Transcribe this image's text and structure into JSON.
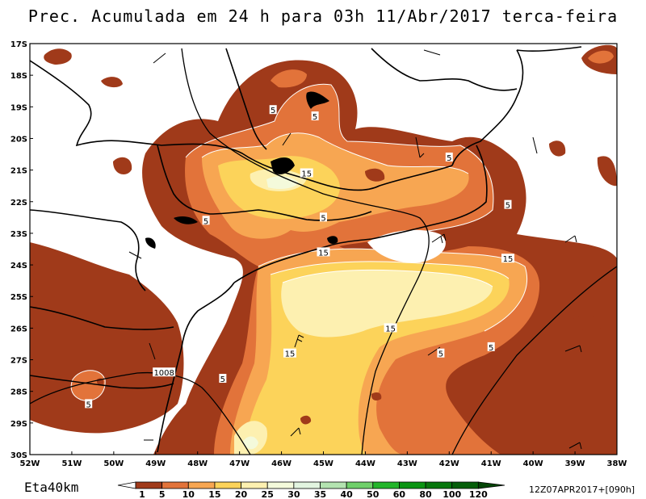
{
  "title": "Prec. Acumulada em 24 h para 03h 11/Abr/2017 terca-feira",
  "model": "Eta40km",
  "run_info": "12Z07APR2017+[090h]",
  "lat_labels": [
    "17S",
    "18S",
    "19S",
    "20S",
    "21S",
    "22S",
    "23S",
    "24S",
    "25S",
    "26S",
    "27S",
    "28S",
    "29S",
    "30S"
  ],
  "lon_labels": [
    "52W",
    "51W",
    "50W",
    "49W",
    "48W",
    "47W",
    "46W",
    "45W",
    "44W",
    "43W",
    "42W",
    "41W",
    "40W",
    "39W",
    "38W"
  ],
  "colorbar": {
    "ticks": [
      "1",
      "5",
      "10",
      "15",
      "20",
      "25",
      "30",
      "35",
      "40",
      "50",
      "60",
      "80",
      "100",
      "120"
    ],
    "colors": [
      "#a03a1a",
      "#e2733a",
      "#f7a652",
      "#fcd35a",
      "#fdf0b0",
      "#f4fadb",
      "#e2f4e0",
      "#b3e3b0",
      "#6fd06a",
      "#22b52a",
      "#0a9412",
      "#06760c",
      "#055e0a",
      "#044506"
    ]
  },
  "contour_labels": [
    {
      "text": "5",
      "lon": -46.2,
      "lat": -19.1
    },
    {
      "text": "5",
      "lon": -45.2,
      "lat": -19.3
    },
    {
      "text": "15",
      "lon": -45.4,
      "lat": -21.1
    },
    {
      "text": "5",
      "lon": -47.8,
      "lat": -22.6
    },
    {
      "text": "5",
      "lon": -45.0,
      "lat": -22.5
    },
    {
      "text": "5",
      "lon": -42.0,
      "lat": -20.6
    },
    {
      "text": "5",
      "lon": -40.6,
      "lat": -22.1
    },
    {
      "text": "15",
      "lon": -45.0,
      "lat": -23.6
    },
    {
      "text": "15",
      "lon": -40.6,
      "lat": -23.8
    },
    {
      "text": "15",
      "lon": -43.4,
      "lat": -26.0
    },
    {
      "text": "15",
      "lon": -45.8,
      "lat": -26.8
    },
    {
      "text": "5",
      "lon": -42.2,
      "lat": -26.8
    },
    {
      "text": "5",
      "lon": -41.0,
      "lat": -26.6
    },
    {
      "text": "5",
      "lon": -47.4,
      "lat": -27.6
    },
    {
      "text": "5",
      "lon": -50.6,
      "lat": -28.4
    }
  ],
  "isobar_label": {
    "text": "1008",
    "lon": -48.8,
    "lat": -27.4
  }
}
